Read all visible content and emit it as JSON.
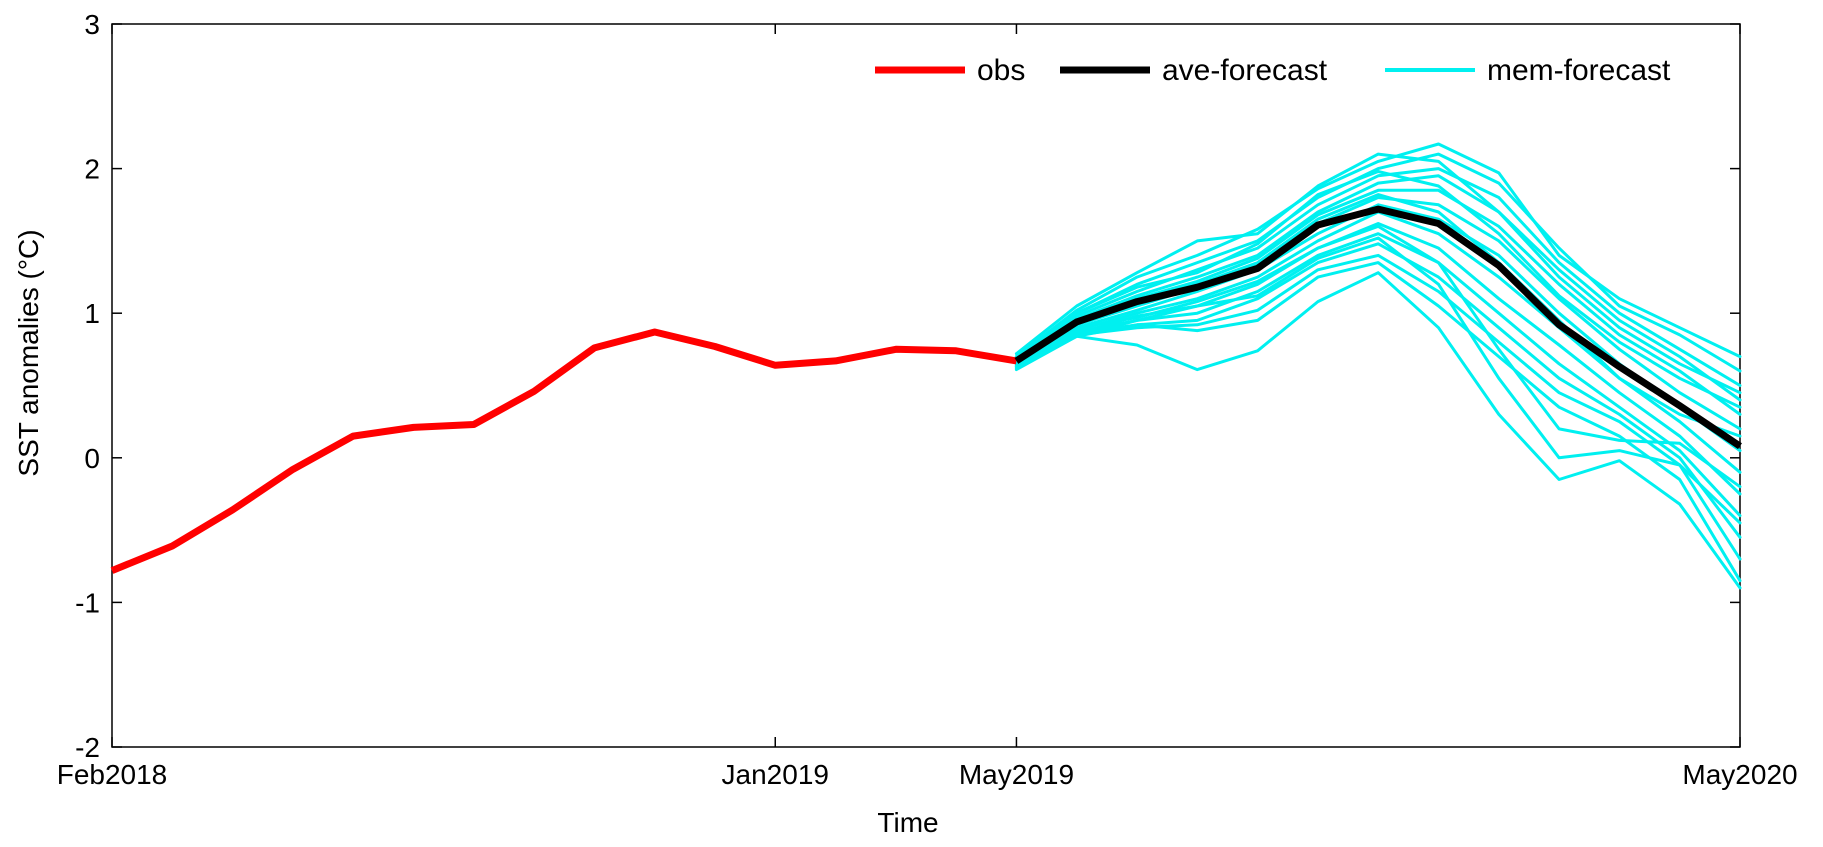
{
  "chart_data": {
    "type": "line",
    "title": "",
    "xlabel": "Time",
    "ylabel": "SST anomalies (°C)",
    "xlim": [
      "Feb2018",
      "May2020"
    ],
    "ylim": [
      -2,
      3
    ],
    "yticks": [
      -2,
      -1,
      0,
      1,
      2,
      3
    ],
    "ytick_labels": [
      "-2",
      "-1",
      "0",
      "1",
      "2",
      "3"
    ],
    "xticks": [
      {
        "month": "2018-02",
        "label": "Feb2018"
      },
      {
        "month": "2019-01",
        "label": "Jan2019"
      },
      {
        "month": "2019-05",
        "label": "May2019"
      },
      {
        "month": "2020-05",
        "label": "May2020"
      }
    ],
    "grid": false,
    "legend_position": "top-right",
    "legend": [
      "obs",
      "ave-forecast",
      "mem-forecast"
    ],
    "colors": {
      "obs": "#ff0000",
      "ave-forecast": "#000000",
      "mem-forecast": "#00f0f0"
    },
    "series": [
      {
        "name": "obs",
        "color": "#ff0000",
        "x": [
          "2018-02",
          "2018-03",
          "2018-04",
          "2018-05",
          "2018-06",
          "2018-07",
          "2018-08",
          "2018-09",
          "2018-10",
          "2018-11",
          "2018-12",
          "2019-01",
          "2019-02",
          "2019-03",
          "2019-04",
          "2019-05"
        ],
        "y": [
          -0.78,
          -0.61,
          -0.36,
          -0.08,
          0.15,
          0.21,
          0.23,
          0.46,
          0.76,
          0.87,
          0.77,
          0.64,
          0.67,
          0.75,
          0.74,
          0.67
        ]
      },
      {
        "name": "ave-forecast",
        "color": "#000000",
        "x": [
          "2019-05",
          "2019-06",
          "2019-07",
          "2019-08",
          "2019-09",
          "2019-10",
          "2019-11",
          "2019-12",
          "2020-01",
          "2020-02",
          "2020-03",
          "2020-04",
          "2020-05"
        ],
        "y": [
          0.67,
          0.94,
          1.08,
          1.18,
          1.31,
          1.61,
          1.72,
          1.62,
          1.33,
          0.92,
          0.63,
          0.36,
          0.08
        ]
      }
    ],
    "members": {
      "name": "mem-forecast",
      "color": "#00f0f0",
      "x": [
        "2019-05",
        "2019-06",
        "2019-07",
        "2019-08",
        "2019-09",
        "2019-10",
        "2019-11",
        "2019-12",
        "2020-01",
        "2020-02",
        "2020-03",
        "2020-04",
        "2020-05"
      ],
      "y": [
        [
          0.72,
          1.05,
          1.28,
          1.5,
          1.55,
          1.88,
          2.1,
          2.05,
          1.7,
          1.25,
          0.9,
          0.65,
          0.45
        ],
        [
          0.7,
          1.02,
          1.25,
          1.4,
          1.58,
          1.86,
          2.05,
          2.17,
          1.97,
          1.4,
          1.1,
          0.9,
          0.7
        ],
        [
          0.69,
          1.0,
          1.2,
          1.35,
          1.5,
          1.8,
          2.0,
          2.1,
          1.9,
          1.45,
          1.05,
          0.85,
          0.6
        ],
        [
          0.68,
          0.98,
          1.15,
          1.3,
          1.45,
          1.75,
          1.95,
          2.0,
          1.8,
          1.35,
          1.0,
          0.75,
          0.5
        ],
        [
          0.67,
          0.96,
          1.12,
          1.25,
          1.4,
          1.7,
          1.9,
          1.95,
          1.7,
          1.3,
          0.95,
          0.7,
          0.4
        ],
        [
          0.66,
          0.94,
          1.1,
          1.22,
          1.38,
          1.68,
          1.85,
          1.85,
          1.6,
          1.2,
          0.85,
          0.6,
          0.3
        ],
        [
          0.66,
          0.92,
          1.05,
          1.18,
          1.33,
          1.62,
          1.8,
          1.75,
          1.5,
          1.1,
          0.75,
          0.45,
          0.2
        ],
        [
          0.65,
          0.9,
          1.02,
          1.15,
          1.3,
          1.55,
          1.75,
          1.65,
          1.4,
          1.0,
          0.65,
          0.35,
          0.05
        ],
        [
          0.64,
          0.88,
          1.0,
          1.1,
          1.25,
          1.5,
          1.7,
          1.55,
          1.25,
          0.9,
          0.55,
          0.25,
          -0.1
        ],
        [
          0.63,
          0.86,
          0.98,
          1.05,
          1.2,
          1.45,
          1.62,
          1.45,
          1.1,
          0.78,
          0.45,
          0.15,
          -0.25
        ],
        [
          0.62,
          0.84,
          0.95,
          1.0,
          1.15,
          1.4,
          1.55,
          1.35,
          1.0,
          0.65,
          0.35,
          0.05,
          -0.4
        ],
        [
          0.61,
          0.84,
          0.92,
          0.95,
          1.1,
          1.35,
          1.48,
          1.25,
          0.9,
          0.55,
          0.3,
          0.0,
          -0.55
        ],
        [
          0.62,
          0.85,
          0.9,
          0.92,
          1.02,
          1.3,
          1.4,
          1.15,
          0.8,
          0.45,
          0.25,
          -0.05,
          -0.7
        ],
        [
          0.63,
          0.86,
          0.92,
          0.88,
          0.95,
          1.25,
          1.35,
          1.05,
          0.7,
          0.35,
          0.15,
          -0.15,
          -0.85
        ],
        [
          0.64,
          0.84,
          0.78,
          0.61,
          0.74,
          1.08,
          1.28,
          0.9,
          0.3,
          -0.15,
          -0.02,
          -0.32,
          -0.9
        ],
        [
          0.65,
          0.87,
          0.95,
          1.05,
          1.12,
          1.38,
          1.52,
          1.2,
          0.55,
          0.0,
          0.05,
          -0.05,
          -0.45
        ],
        [
          0.66,
          0.9,
          0.97,
          1.08,
          1.22,
          1.45,
          1.6,
          1.35,
          0.75,
          0.2,
          0.12,
          0.1,
          -0.2
        ],
        [
          0.68,
          0.95,
          1.1,
          1.2,
          1.35,
          1.65,
          1.82,
          1.7,
          1.35,
          0.95,
          0.55,
          0.3,
          0.15
        ],
        [
          0.7,
          1.0,
          1.18,
          1.28,
          1.48,
          1.82,
          1.98,
          1.88,
          1.55,
          1.12,
          0.8,
          0.55,
          0.35
        ]
      ]
    }
  }
}
